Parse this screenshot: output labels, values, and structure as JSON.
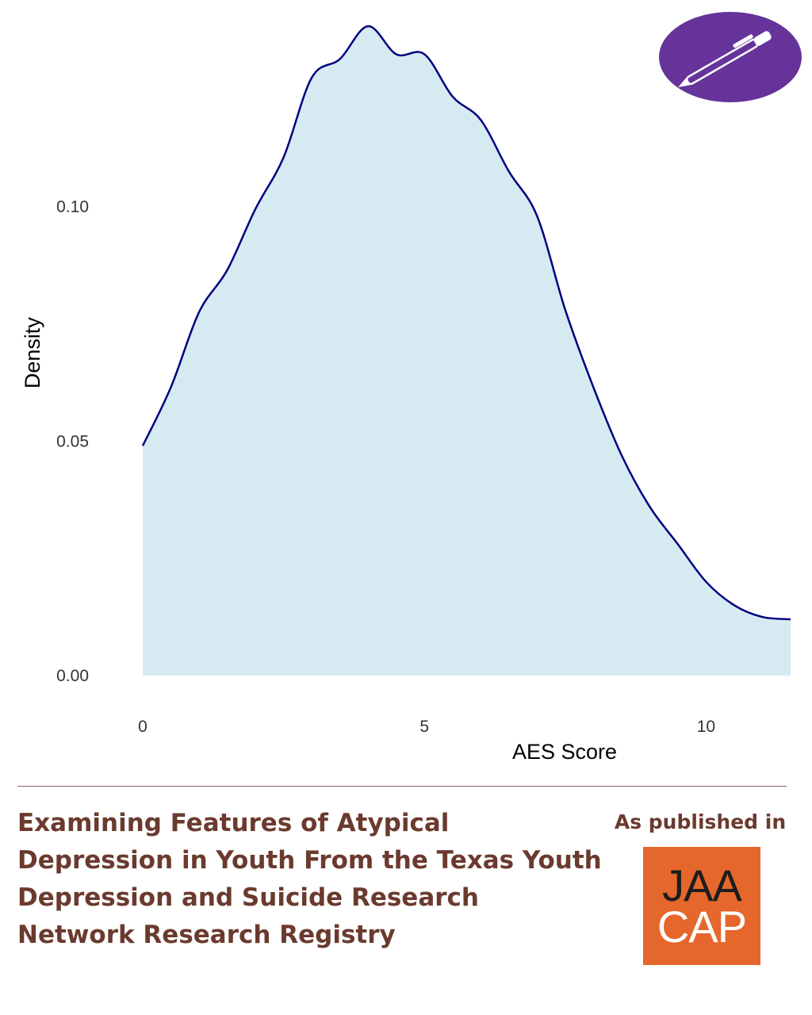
{
  "chart_data": {
    "type": "area",
    "xlabel": "AES Score",
    "ylabel": "Density",
    "xlim": [
      0,
      11.5
    ],
    "ylim": [
      0,
      0.139
    ],
    "x_ticks": [
      0,
      5,
      10
    ],
    "x_tick_labels": [
      "0",
      "5",
      "10"
    ],
    "y_ticks": [
      0.0,
      0.05,
      0.1
    ],
    "y_tick_labels": [
      "0.00",
      "0.05",
      "0.10"
    ],
    "grid": false,
    "legend": "none",
    "series": [
      {
        "x": [
          0,
          0.5,
          1.0,
          1.5,
          2.0,
          2.5,
          3.0,
          3.5,
          4.0,
          4.5,
          5.0,
          5.5,
          6.0,
          6.5,
          7.0,
          7.5,
          8.0,
          8.5,
          9.0,
          9.5,
          10.0,
          10.5,
          11.0,
          11.5
        ],
        "y": [
          0.049,
          0.0615,
          0.0775,
          0.0865,
          0.0995,
          0.1105,
          0.1275,
          0.1315,
          0.1385,
          0.1325,
          0.1325,
          0.1235,
          0.1185,
          0.1075,
          0.098,
          0.078,
          0.0615,
          0.047,
          0.036,
          0.028,
          0.02,
          0.015,
          0.0125,
          0.012
        ]
      }
    ],
    "fill_color": "#d6eaf2",
    "line_color": "#000080"
  },
  "title_block": {
    "paper_title": "Examining Features of Atypical Depression in Youth From the Texas Youth Depression and Suicide Research Network Research Registry",
    "published_label": "As published in",
    "journal_line1": "JAA",
    "journal_line2": "CAP"
  },
  "icons": {
    "top_right_badge": "pen-icon"
  },
  "colors": {
    "badge": "#65339a",
    "title_text": "#6b3a2e",
    "journal_logo": "#e5672b"
  }
}
